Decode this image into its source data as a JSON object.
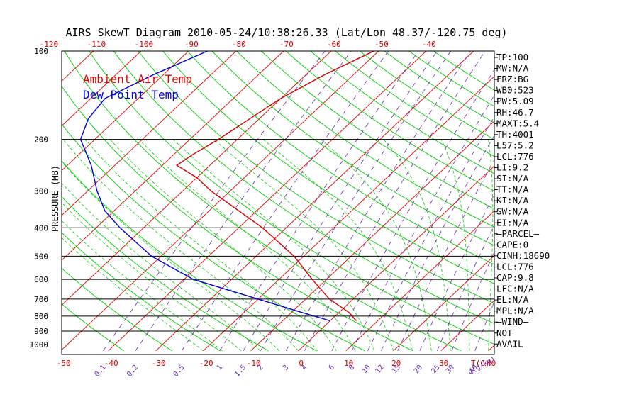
{
  "chart_data": {
    "type": "line",
    "title": "AIRS SkewT Diagram 2010-05-24/10:38:26.33 (Lat/Lon 48.37/-120.75 deg)",
    "ylabel": "PRESSURE (MB)",
    "y_scale": "log-pressure",
    "ylim": [
      1050,
      100
    ],
    "pressure_ticks": [
      "100",
      "200",
      "300",
      "400",
      "500",
      "600",
      "700",
      "800",
      "900",
      "1000"
    ],
    "isobar_gridlines": [
      200,
      300,
      400,
      500,
      600,
      700,
      800,
      900
    ],
    "top_temperature_ticks": [
      "-120",
      "-110",
      "-100",
      "-90",
      "-80",
      "-70",
      "-60",
      "-50",
      "-40"
    ],
    "bottom_temperature_ticks": [
      "-50",
      "-40",
      "-30",
      "-20",
      "-10",
      "0",
      "10",
      "20",
      "30",
      "40"
    ],
    "bottom_temperature_unit": "T(C)",
    "mixing_ratio_ticks": [
      "0.1",
      "0.2",
      "0.5",
      "1",
      "1.5",
      "2",
      "3",
      "4",
      "6",
      "8",
      "10",
      "12",
      "15",
      "20",
      "25",
      "30",
      "40"
    ],
    "mixing_ratio_unit": "q(g/kg)",
    "legend": [
      {
        "label": "Ambient Air Temp",
        "color": "#e00000"
      },
      {
        "label": "Dew Point Temp",
        "color": "#0000e0"
      }
    ],
    "background_lines": {
      "isotherms": "#e00000",
      "dry_adiabats": "#00cc00",
      "moist_adiabats": "#00cc00",
      "mixing_ratio": "#6a2aa8",
      "isobars": "#000000"
    },
    "series": [
      {
        "name": "Ambient Air Temp",
        "color": "#d00000",
        "points": [
          {
            "p": 100,
            "t": -51
          },
          {
            "p": 120,
            "t": -56
          },
          {
            "p": 145,
            "t": -60
          },
          {
            "p": 170,
            "t": -62
          },
          {
            "p": 200,
            "t": -64
          },
          {
            "p": 225,
            "t": -66
          },
          {
            "p": 245,
            "t": -67
          },
          {
            "p": 270,
            "t": -60
          },
          {
            "p": 300,
            "t": -54
          },
          {
            "p": 400,
            "t": -35
          },
          {
            "p": 500,
            "t": -22
          },
          {
            "p": 600,
            "t": -13
          },
          {
            "p": 700,
            "t": -5
          },
          {
            "p": 776,
            "t": 2
          },
          {
            "p": 830,
            "t": 5.5
          }
        ]
      },
      {
        "name": "Dew Point Temp",
        "color": "#0000d0",
        "points": [
          {
            "p": 100,
            "t": -86
          },
          {
            "p": 120,
            "t": -92
          },
          {
            "p": 145,
            "t": -97
          },
          {
            "p": 170,
            "t": -96
          },
          {
            "p": 200,
            "t": -93
          },
          {
            "p": 245,
            "t": -85
          },
          {
            "p": 300,
            "t": -78
          },
          {
            "p": 350,
            "t": -72
          },
          {
            "p": 400,
            "t": -65
          },
          {
            "p": 500,
            "t": -52
          },
          {
            "p": 600,
            "t": -38
          },
          {
            "p": 700,
            "t": -20
          },
          {
            "p": 776,
            "t": -8
          },
          {
            "p": 830,
            "t": 0
          }
        ]
      }
    ]
  },
  "indices": [
    "TP:100",
    "MW:N/A",
    "FRZ:BG",
    "WB0:523",
    "PW:5.09",
    "RH:46.7",
    "MAXT:5.4",
    "TH:4001",
    "L57:5.2",
    "LCL:776",
    "LI:9.2",
    "SI:N/A",
    "TT:N/A",
    "KI:N/A",
    "SW:N/A",
    "EI:N/A",
    "—PARCEL—",
    "CAPE:0",
    "CINH:18690",
    "LCL:776",
    "CAP:9.8",
    "LFC:N/A",
    "EL:N/A",
    "MPL:N/A",
    "—WIND—",
    "NOT",
    "AVAIL"
  ]
}
